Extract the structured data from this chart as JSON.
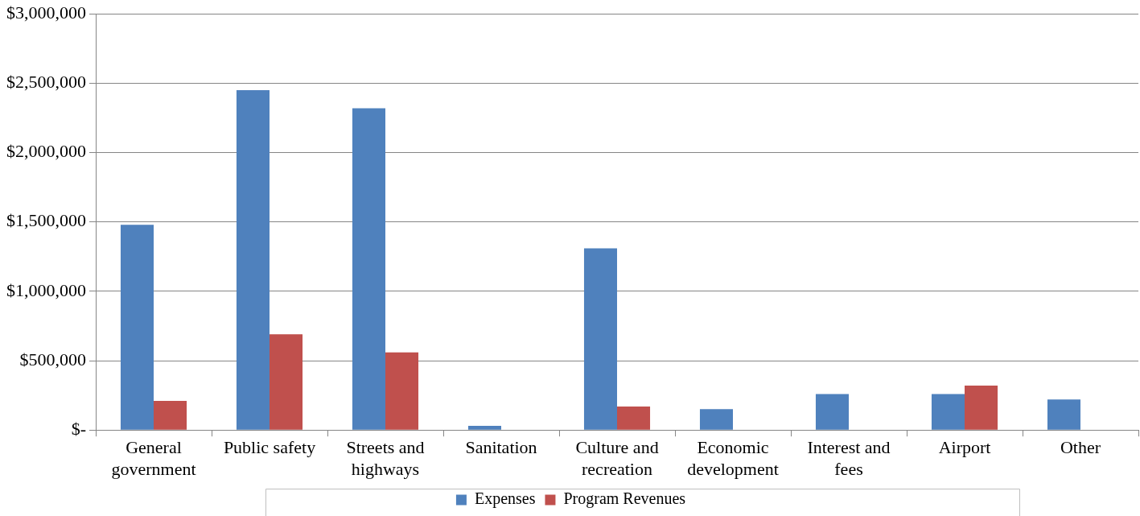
{
  "chart_data": {
    "type": "bar",
    "categories": [
      "General government",
      "Public safety",
      "Streets and highways",
      "Sanitation",
      "Culture and recreation",
      "Economic development",
      "Interest and fees",
      "Airport",
      "Other"
    ],
    "series": [
      {
        "name": "Expenses",
        "color": "#4f81bd",
        "values": [
          1480000,
          2450000,
          2320000,
          30000,
          1310000,
          150000,
          260000,
          260000,
          220000
        ]
      },
      {
        "name": "Program Revenues",
        "color": "#c0504d",
        "values": [
          210000,
          690000,
          560000,
          0,
          170000,
          0,
          0,
          320000,
          0
        ]
      }
    ],
    "ylim": [
      0,
      3000000
    ],
    "yticks": [
      {
        "value": 0,
        "label": "$-"
      },
      {
        "value": 500000,
        "label": "$500,000"
      },
      {
        "value": 1000000,
        "label": "$1,000,000"
      },
      {
        "value": 1500000,
        "label": "$1,500,000"
      },
      {
        "value": 2000000,
        "label": "$2,000,000"
      },
      {
        "value": 2500000,
        "label": "$2,500,000"
      },
      {
        "value": 3000000,
        "label": "$3,000,000"
      }
    ],
    "grid": "y",
    "legend": "bottom"
  }
}
